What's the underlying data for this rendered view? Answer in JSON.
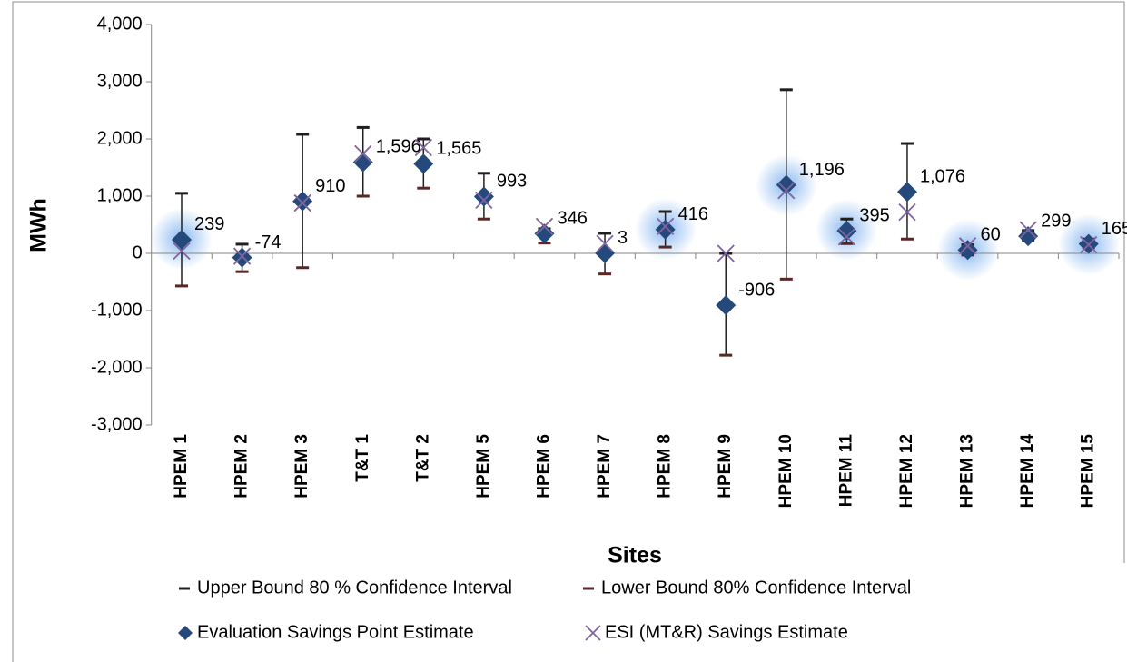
{
  "chart_data": {
    "type": "marker",
    "categories": [
      "HPEM 1",
      "HPEM 2",
      "HPEM 3",
      "T&T 1",
      "T&T 2",
      "HPEM 5",
      "HPEM 6",
      "HPEM 7",
      "HPEM 8",
      "HPEM 9",
      "HPEM 10",
      "HPEM 11",
      "HPEM 12",
      "HPEM 13",
      "HPEM 14",
      "HPEM 15"
    ],
    "xlabel": "Sites",
    "ylabel": "MWh",
    "ylim": [
      -3000,
      4000
    ],
    "yticks": [
      {
        "value": -3000,
        "label": "-3,000"
      },
      {
        "value": -2000,
        "label": "-2,000"
      },
      {
        "value": -1000,
        "label": "-1,000"
      },
      0,
      {
        "value": 1000,
        "label": "1,000"
      },
      {
        "value": 2000,
        "label": "2,000"
      },
      {
        "value": 3000,
        "label": "3,000"
      },
      {
        "value": 4000,
        "label": "4,000"
      }
    ],
    "grid": false,
    "series": [
      {
        "name": "Upper Bound 80 % Confidence Interval",
        "color": "#1f1f1f",
        "marker": "dash",
        "values": [
          1050,
          160,
          2080,
          2200,
          2000,
          1400,
          430,
          350,
          730,
          0,
          2860,
          600,
          1920,
          150,
          400,
          250
        ]
      },
      {
        "name": "Lower Bound 80% Confidence Interval",
        "color": "#5a2626",
        "marker": "dash",
        "values": [
          -570,
          -320,
          -250,
          1000,
          1140,
          600,
          180,
          -360,
          110,
          -1780,
          -450,
          170,
          250,
          -30,
          220,
          100
        ]
      },
      {
        "name": "Evaluation Savings Point Estimate",
        "color": "#24497a",
        "marker": "diamond",
        "values": [
          239,
          -74,
          910,
          1596,
          1565,
          993,
          346,
          3,
          416,
          -906,
          1196,
          395,
          1076,
          60,
          299,
          165
        ],
        "value_labels": [
          "239",
          "-74",
          "910",
          "1,596",
          "1,565",
          "993",
          "346",
          "3",
          "416",
          "-906",
          "1,196",
          "395",
          "1,076",
          "60",
          "299",
          "165"
        ]
      },
      {
        "name": "ESI (MT&R) Savings Estimate",
        "color": "#8064a2",
        "marker": "x",
        "values": [
          40,
          -50,
          880,
          1740,
          1850,
          930,
          470,
          170,
          470,
          0,
          1100,
          290,
          720,
          130,
          410,
          150
        ]
      }
    ]
  }
}
